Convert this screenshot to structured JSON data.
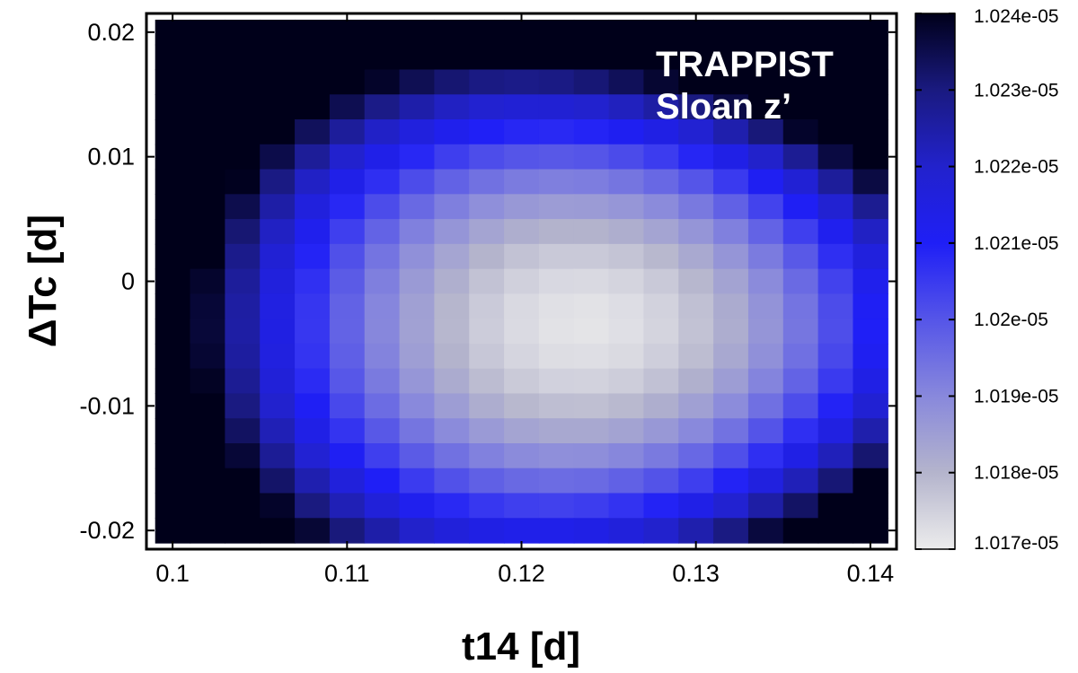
{
  "chart_data": {
    "type": "heatmap",
    "xlabel": "t14 [d]",
    "ylabel": "ΔTc [d]",
    "xlim": [
      0.0985,
      0.1415
    ],
    "ylim": [
      -0.0215,
      0.0215
    ],
    "xticks": [
      {
        "value": 0.1,
        "label": "0.1"
      },
      {
        "value": 0.11,
        "label": "0.11"
      },
      {
        "value": 0.12,
        "label": "0.12"
      },
      {
        "value": 0.13,
        "label": "0.13"
      },
      {
        "value": 0.14,
        "label": "0.14"
      }
    ],
    "yticks": [
      {
        "value": 0.02,
        "label": "0.02"
      },
      {
        "value": 0.01,
        "label": "0.01"
      },
      {
        "value": 0.0,
        "label": "0"
      },
      {
        "value": -0.01,
        "label": "-0.01"
      },
      {
        "value": -0.02,
        "label": "-0.02"
      }
    ],
    "x": [
      0.1,
      0.102,
      0.104,
      0.106,
      0.108,
      0.11,
      0.112,
      0.114,
      0.116,
      0.118,
      0.12,
      0.122,
      0.124,
      0.126,
      0.128,
      0.13,
      0.132,
      0.134,
      0.136,
      0.138,
      0.14
    ],
    "y": [
      0.02,
      0.018,
      0.016,
      0.014,
      0.012,
      0.01,
      0.008,
      0.006,
      0.004,
      0.002,
      0.0,
      -0.002,
      -0.004,
      -0.006,
      -0.008,
      -0.01,
      -0.012,
      -0.014,
      -0.016,
      -0.018,
      -0.02
    ],
    "colorbar": {
      "min": 1.017e-05,
      "max": 1.024e-05,
      "ticks": [
        {
          "value": 1.024e-05,
          "label": "1.024e-05"
        },
        {
          "value": 1.023e-05,
          "label": "1.023e-05"
        },
        {
          "value": 1.022e-05,
          "label": "1.022e-05"
        },
        {
          "value": 1.021e-05,
          "label": "1.021e-05"
        },
        {
          "value": 1.02e-05,
          "label": "1.02e-05"
        },
        {
          "value": 1.019e-05,
          "label": "1.019e-05"
        },
        {
          "value": 1.018e-05,
          "label": "1.018e-05"
        },
        {
          "value": 1.017e-05,
          "label": "1.017e-05"
        }
      ],
      "colors": [
        "#ececec",
        "#b4b4cc",
        "#8888dc",
        "#5555e8",
        "#1f1ff6",
        "#2222cc",
        "#1a1a80",
        "#00001a"
      ]
    },
    "annotations": [
      "TRAPPIST",
      "Sloan z’"
    ],
    "grid": false
  }
}
